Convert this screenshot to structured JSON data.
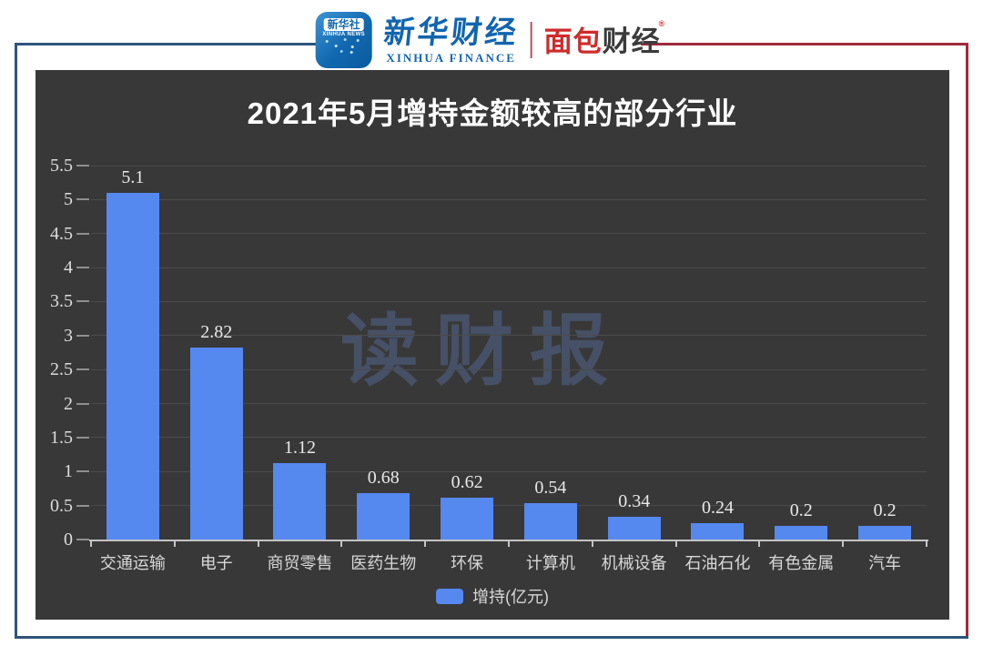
{
  "header": {
    "badge": {
      "cn": "新华社",
      "en": "XINHUA NEWS"
    },
    "finance": {
      "cn": "新华财经",
      "en": "XINHUA FINANCE"
    },
    "bread": {
      "part_red": "面包",
      "part_dark": "财经",
      "mark": "®"
    }
  },
  "chart_data": {
    "type": "bar",
    "title": "2021年5月增持金额较高的部分行业",
    "categories": [
      "交通运输",
      "电子",
      "商贸零售",
      "医药生物",
      "环保",
      "计算机",
      "机械设备",
      "石油石化",
      "有色金属",
      "汽车"
    ],
    "values": [
      5.1,
      2.82,
      1.12,
      0.68,
      0.62,
      0.54,
      0.34,
      0.24,
      0.2,
      0.2
    ],
    "value_labels": [
      "5.1",
      "2.82",
      "1.12",
      "0.68",
      "0.62",
      "0.54",
      "0.34",
      "0.24",
      "0.2",
      "0.2"
    ],
    "series_name": "增持(亿元)",
    "legend_position": "bottom",
    "ylim": [
      0,
      5.5
    ],
    "ytick_step": 0.5,
    "yticks": [
      "5.5",
      "5",
      "4.5",
      "4",
      "3.5",
      "3",
      "2.5",
      "2",
      "1.5",
      "1",
      "0.5",
      "0"
    ],
    "grid": true,
    "xlabel": "",
    "ylabel": "",
    "watermark": "读财报"
  },
  "colors": {
    "bar": "#5589F0",
    "panel_bg": "#383838",
    "gridline": "#4B4B4B",
    "axis": "#C4C4C4",
    "frame_blue": "#2E547C",
    "frame_red": "#9E2B3B",
    "title_text": "#FFFFFF",
    "label_text": "#D8D8D8",
    "watermark_blue": "#6484C6",
    "xinhua_blue": "#1265AE",
    "bread_red": "#CE2B2B"
  }
}
